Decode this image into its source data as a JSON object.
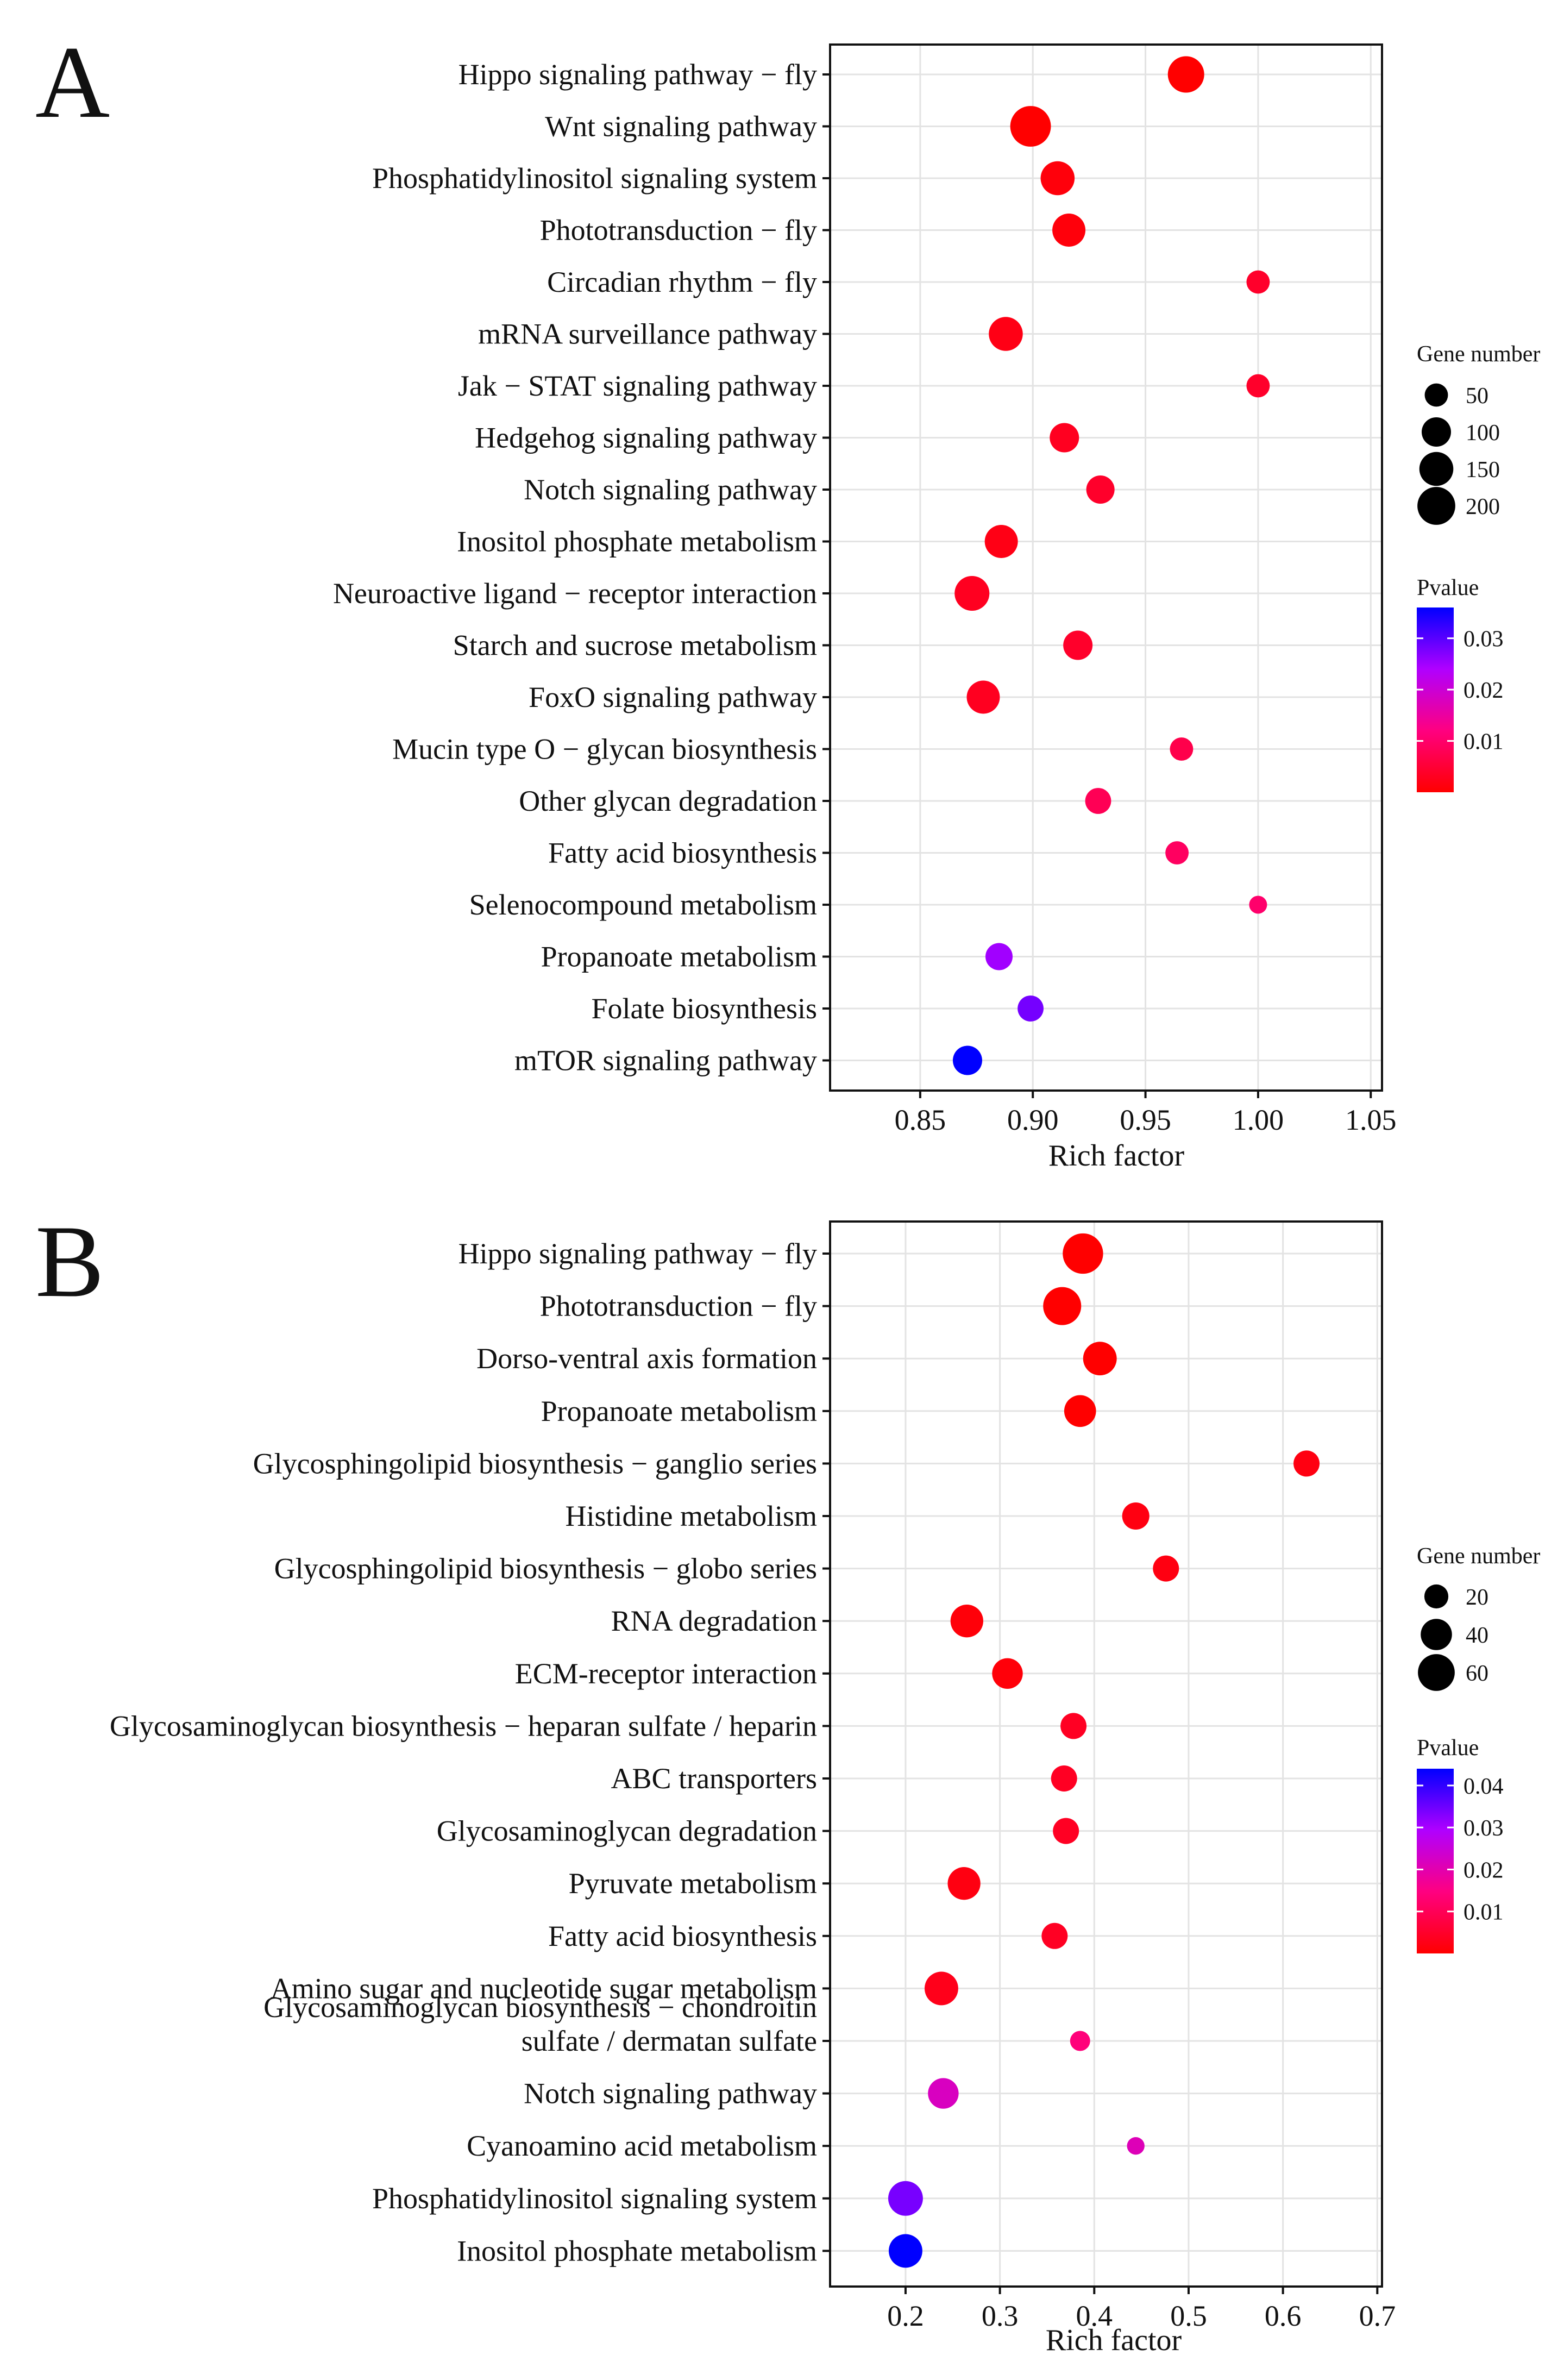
{
  "chart_data": [
    {
      "panel_label": "A",
      "type": "scatter",
      "xlabel": "Rich factor",
      "xlim": [
        0.81,
        1.055
      ],
      "xticks": [
        0.85,
        0.9,
        0.95,
        1.0,
        1.05
      ],
      "xtick_labels": [
        "0.85",
        "0.90",
        "0.95",
        "1.00",
        "1.05"
      ],
      "categories": [
        "Hippo signaling pathway − fly",
        "Wnt signaling pathway",
        "Phosphatidylinositol signaling system",
        "Phototransduction − fly",
        "Circadian rhythm − fly",
        "mRNA surveillance pathway",
        "Jak − STAT signaling pathway",
        "Hedgehog signaling pathway",
        "Notch signaling pathway",
        "Inositol phosphate metabolism",
        "Neuroactive ligand − receptor interaction",
        "Starch and sucrose metabolism",
        "FoxO signaling pathway",
        "Mucin type O − glycan biosynthesis",
        "Other glycan degradation",
        "Fatty acid biosynthesis",
        "Selenocompound metabolism",
        "Propanoate metabolism",
        "Folate biosynthesis",
        "mTOR signaling pathway"
      ],
      "rich_factor": [
        0.968,
        0.899,
        0.911,
        0.916,
        1.0,
        0.888,
        1.0,
        0.914,
        0.93,
        0.886,
        0.873,
        0.92,
        0.878,
        0.966,
        0.929,
        0.964,
        1.0,
        0.885,
        0.899,
        0.871
      ],
      "gene_number": [
        180,
        240,
        150,
        140,
        50,
        150,
        50,
        100,
        90,
        140,
        160,
        100,
        140,
        50,
        70,
        50,
        20,
        80,
        70,
        100
      ],
      "pvalue": [
        0.0,
        0.0,
        0.001,
        0.001,
        0.004,
        0.002,
        0.004,
        0.003,
        0.004,
        0.002,
        0.003,
        0.004,
        0.003,
        0.007,
        0.008,
        0.009,
        0.01,
        0.025,
        0.028,
        0.036
      ],
      "size_legend": {
        "title": "Gene number",
        "values": [
          50,
          100,
          150,
          200
        ],
        "labels": [
          "50",
          "100",
          "150",
          "200"
        ]
      },
      "color_legend": {
        "title": "Pvalue",
        "range": [
          0.0,
          0.036
        ],
        "ticks": [
          0.03,
          0.02,
          0.01
        ],
        "tick_labels": [
          "0.03",
          "0.02",
          "0.01"
        ],
        "colors": [
          "#ff0000",
          "#ff0080",
          "#b000ff",
          "#0000ff"
        ]
      },
      "grid": true
    },
    {
      "panel_label": "B",
      "type": "scatter",
      "xlabel": "Rich factor",
      "xlim": [
        0.12,
        0.705
      ],
      "xticks": [
        0.2,
        0.3,
        0.4,
        0.5,
        0.6,
        0.7
      ],
      "xtick_labels": [
        "0.2",
        "0.3",
        "0.4",
        "0.5",
        "0.6",
        "0.7"
      ],
      "categories": [
        "Hippo signaling pathway − fly",
        "Phototransduction − fly",
        "Dorso-ventral axis formation",
        "Propanoate metabolism",
        "Glycosphingolipid biosynthesis − ganglio series",
        "Histidine metabolism",
        "Glycosphingolipid biosynthesis − globo series",
        "RNA degradation",
        "ECM-receptor interaction",
        "Glycosaminoglycan biosynthesis − heparan sulfate / heparin",
        "ABC transporters",
        "Glycosaminoglycan degradation",
        "Pyruvate metabolism",
        "Fatty acid biosynthesis",
        "Amino sugar and nucleotide sugar metabolism",
        "Glycosaminoglycan biosynthesis − chondroitin sulfate / dermatan sulfate",
        "Notch signaling pathway",
        "Cyanoamino acid metabolism",
        "Phosphatidylinositol signaling system",
        "Inositol phosphate metabolism"
      ],
      "category_label_lines": [
        [
          "Hippo signaling pathway − fly"
        ],
        [
          "Phototransduction − fly"
        ],
        [
          "Dorso-ventral axis formation"
        ],
        [
          "Propanoate metabolism"
        ],
        [
          "Glycosphingolipid biosynthesis − ganglio series"
        ],
        [
          "Histidine metabolism"
        ],
        [
          "Glycosphingolipid biosynthesis − globo series"
        ],
        [
          "RNA degradation"
        ],
        [
          "ECM-receptor interaction"
        ],
        [
          "Glycosaminoglycan biosynthesis − heparan sulfate / heparin"
        ],
        [
          "ABC transporters"
        ],
        [
          "Glycosaminoglycan degradation"
        ],
        [
          "Pyruvate metabolism"
        ],
        [
          "Fatty acid biosynthesis"
        ],
        [
          "Amino sugar and nucleotide sugar metabolism"
        ],
        [
          "Glycosaminoglycan biosynthesis − chondroitin",
          "sulfate / dermatan sulfate"
        ],
        [
          "Notch signaling pathway"
        ],
        [
          "Cyanoamino acid metabolism"
        ],
        [
          "Phosphatidylinositol signaling system"
        ],
        [
          "Inositol phosphate metabolism"
        ]
      ],
      "rich_factor": [
        0.388,
        0.366,
        0.406,
        0.385,
        0.625,
        0.444,
        0.476,
        0.265,
        0.308,
        0.378,
        0.368,
        0.37,
        0.262,
        0.358,
        0.238,
        0.385,
        0.24,
        0.444,
        0.2,
        0.2
      ],
      "gene_number": [
        75,
        65,
        48,
        42,
        25,
        28,
        25,
        45,
        38,
        25,
        25,
        25,
        45,
        25,
        48,
        12,
        38,
        8,
        52,
        48
      ],
      "pvalue": [
        0.0,
        0.0,
        0.0,
        0.0,
        0.002,
        0.002,
        0.002,
        0.001,
        0.001,
        0.004,
        0.004,
        0.004,
        0.002,
        0.004,
        0.003,
        0.014,
        0.022,
        0.021,
        0.034,
        0.044
      ],
      "size_legend": {
        "title": "Gene number",
        "values": [
          20,
          40,
          60
        ],
        "labels": [
          "20",
          "40",
          "60"
        ]
      },
      "color_legend": {
        "title": "Pvalue",
        "range": [
          0.0,
          0.044
        ],
        "ticks": [
          0.04,
          0.03,
          0.02,
          0.01
        ],
        "tick_labels": [
          "0.04",
          "0.03",
          "0.02",
          "0.01"
        ],
        "colors": [
          "#ff0000",
          "#ff0080",
          "#b000ff",
          "#0000ff"
        ]
      },
      "grid": true
    }
  ]
}
